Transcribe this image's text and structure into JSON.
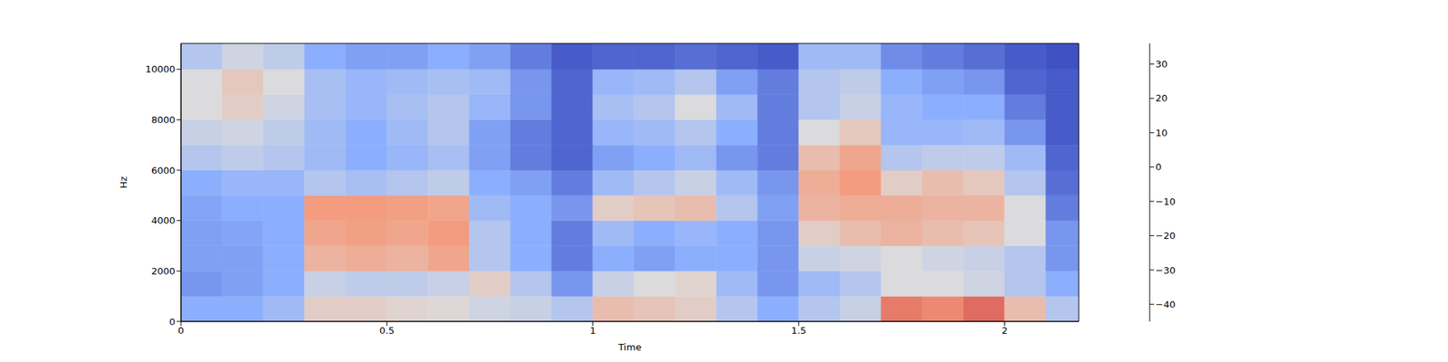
{
  "chart_data": {
    "type": "heatmap",
    "x_label": "Time",
    "y_label": "Hz",
    "xlim": [
      0,
      2.18
    ],
    "ylim": [
      0,
      11025
    ],
    "xticks": [
      0,
      0.5,
      1,
      1.5,
      2
    ],
    "yticks": [
      0,
      2000,
      4000,
      6000,
      8000,
      10000
    ],
    "x_edges": [
      0,
      0.1,
      0.2,
      0.3,
      0.4,
      0.5,
      0.6,
      0.7,
      0.8,
      0.9,
      1.0,
      1.1,
      1.2,
      1.3,
      1.4,
      1.5,
      1.6,
      1.7,
      1.8,
      1.9,
      2.0,
      2.1,
      2.18
    ],
    "y_edges": [
      0,
      1000,
      2000,
      3000,
      4000,
      5000,
      6000,
      7000,
      8000,
      9000,
      10000,
      11025
    ],
    "values": [
      [
        -25,
        -25,
        -20,
        0,
        0,
        -2,
        -3,
        -8,
        -10,
        -15,
        5,
        3,
        0,
        -15,
        -25,
        -15,
        -10,
        20,
        18,
        22,
        5,
        -15
      ],
      [
        -30,
        -28,
        -25,
        -10,
        -12,
        -12,
        -10,
        0,
        -15,
        -30,
        -10,
        -5,
        -2,
        -20,
        -30,
        -20,
        -15,
        -5,
        -5,
        -8,
        -15,
        -25
      ],
      [
        -28,
        -28,
        -25,
        8,
        10,
        8,
        12,
        -15,
        -25,
        -35,
        -25,
        -28,
        -25,
        -25,
        -30,
        -10,
        -8,
        -5,
        -8,
        -10,
        -15,
        -30
      ],
      [
        -28,
        -27,
        -25,
        12,
        14,
        12,
        15,
        -15,
        -25,
        -35,
        -20,
        -25,
        -22,
        -25,
        -30,
        0,
        5,
        8,
        5,
        3,
        -5,
        -30
      ],
      [
        -27,
        -25,
        -25,
        15,
        15,
        14,
        12,
        -20,
        -25,
        -30,
        0,
        3,
        5,
        -15,
        -28,
        8,
        10,
        10,
        8,
        8,
        -5,
        -35
      ],
      [
        -25,
        -22,
        -22,
        -15,
        -18,
        -15,
        -12,
        -25,
        -28,
        -35,
        -20,
        -15,
        -10,
        -20,
        -30,
        10,
        15,
        0,
        5,
        2,
        -15,
        -38
      ],
      [
        -15,
        -12,
        -15,
        -20,
        -25,
        -22,
        -18,
        -28,
        -35,
        -40,
        -28,
        -25,
        -20,
        -30,
        -35,
        5,
        12,
        -15,
        -12,
        -12,
        -20,
        -40
      ],
      [
        -10,
        -8,
        -12,
        -20,
        -25,
        -20,
        -15,
        -28,
        -35,
        -40,
        -22,
        -20,
        -15,
        -25,
        -35,
        -5,
        2,
        -22,
        -22,
        -20,
        -30,
        -42
      ],
      [
        -5,
        0,
        -8,
        -18,
        -22,
        -18,
        -15,
        -22,
        -30,
        -40,
        -18,
        -15,
        -5,
        -20,
        -35,
        -15,
        -10,
        -22,
        -25,
        -25,
        -35,
        -42
      ],
      [
        -5,
        2,
        -5,
        -18,
        -22,
        -20,
        -18,
        -20,
        -30,
        -40,
        -22,
        -20,
        -15,
        -28,
        -35,
        -15,
        -12,
        -25,
        -28,
        -30,
        -40,
        -42
      ],
      [
        -15,
        -8,
        -12,
        -25,
        -28,
        -28,
        -25,
        -28,
        -35,
        -42,
        -40,
        -40,
        -38,
        -40,
        -42,
        -20,
        -20,
        -32,
        -35,
        -38,
        -42,
        -44
      ]
    ],
    "color_range": [
      -45,
      36
    ],
    "color_ticks": [
      {
        "value": -40,
        "label": "−40"
      },
      {
        "value": -30,
        "label": "−30"
      },
      {
        "value": -20,
        "label": "−20"
      },
      {
        "value": -10,
        "label": "−10"
      },
      0,
      10,
      20,
      30
    ]
  }
}
